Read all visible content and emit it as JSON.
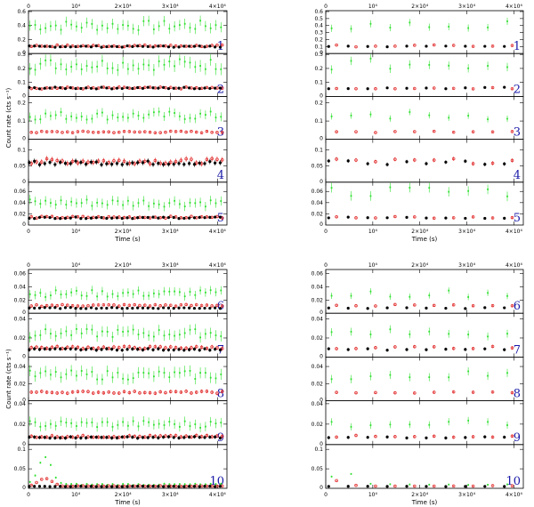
{
  "chart_data": [
    {
      "type": "scatter",
      "xlabel": "Time (s)",
      "ylabel": "Count rate (cts s⁻¹)",
      "xlim": [
        0,
        42000
      ],
      "x_tick_labels": [
        "0",
        "10⁴",
        "2×10⁴",
        "3×10⁴",
        "4×10⁴"
      ],
      "panels": [
        {
          "label": "1",
          "ylim": [
            0,
            0.6
          ],
          "yticks": [
            "0.2",
            "0.4",
            "0.6"
          ],
          "green": 0.4,
          "red": 0.11,
          "black": 0.1
        },
        {
          "label": "2",
          "ylim": [
            0,
            0.3
          ],
          "yticks": [
            "0.1",
            "0.2",
            "0.3"
          ],
          "green": 0.23,
          "red": 0.06,
          "black": 0.06
        },
        {
          "label": "3",
          "ylim": [
            0,
            0.23
          ],
          "yticks": [
            "0.1",
            "0.2"
          ],
          "green": 0.13,
          "red": 0.04,
          "black": null
        },
        {
          "label": "4",
          "ylim": [
            0,
            0.13
          ],
          "yticks": [
            "0.05",
            "0.1"
          ],
          "green": null,
          "red": 0.065,
          "black": 0.06
        },
        {
          "label": "5",
          "ylim": [
            0,
            0.075
          ],
          "yticks": [
            "0.02",
            "0.04",
            "0.06"
          ],
          "green": 0.04,
          "red": 0.014,
          "black": 0.013
        }
      ]
    },
    {
      "type": "scatter",
      "xlabel": "Time (s)",
      "ylabel": "",
      "xlim": [
        0,
        42000
      ],
      "x_tick_labels": [
        "0",
        "10⁴",
        "2×10⁴",
        "3×10⁴",
        "4×10⁴"
      ],
      "panels": [
        {
          "label": "1",
          "ylim": [
            0,
            0.6
          ],
          "yticks": [
            "0.1",
            "0.2",
            "0.3",
            "0.4",
            "0.5",
            "0.6"
          ],
          "green": 0.4,
          "red": 0.11,
          "black": 0.1
        },
        {
          "label": "2",
          "ylim": [
            0,
            0.3
          ],
          "yticks": [
            "0.1",
            "0.2",
            "0.3"
          ],
          "green": 0.23,
          "red": 0.06,
          "black": 0.06
        },
        {
          "label": "3",
          "ylim": [
            0,
            0.23
          ],
          "yticks": [
            "0.1",
            "0.2"
          ],
          "green": 0.13,
          "red": 0.04,
          "black": null
        },
        {
          "label": "4",
          "ylim": [
            0,
            0.13
          ],
          "yticks": [
            "0.05",
            "0.1"
          ],
          "green": null,
          "red": 0.065,
          "black": 0.06
        },
        {
          "label": "5",
          "ylim": [
            0,
            0.075
          ],
          "yticks": [
            "0.02",
            "0.04",
            "0.06"
          ],
          "green": 0.06,
          "red": 0.014,
          "black": 0.013
        }
      ]
    },
    {
      "type": "scatter",
      "xlabel": "Time (s)",
      "ylabel": "Count rate (cts s⁻¹)",
      "xlim": [
        0,
        42000
      ],
      "x_tick_labels": [
        "0",
        "10⁴",
        "2×10⁴",
        "3×10⁴",
        "4×10⁴"
      ],
      "panels": [
        {
          "label": "6",
          "ylim": [
            0,
            0.065
          ],
          "yticks": [
            "0.02",
            "0.04",
            "0.06"
          ],
          "green": 0.03,
          "red": 0.012,
          "black": 0.008
        },
        {
          "label": "7",
          "ylim": [
            0,
            0.045
          ],
          "yticks": [
            "0.02",
            "0.04"
          ],
          "green": 0.025,
          "red": 0.01,
          "black": 0.008
        },
        {
          "label": "8",
          "ylim": [
            0,
            0.05
          ],
          "yticks": [
            "0.02",
            "0.04"
          ],
          "green": 0.03,
          "red": 0.01,
          "black": null
        },
        {
          "label": "9",
          "ylim": [
            0,
            0.042
          ],
          "yticks": [
            "0.02",
            "0.04"
          ],
          "green": 0.02,
          "red": 0.008,
          "black": 0.007
        },
        {
          "label": "10",
          "ylim": [
            0,
            0.11
          ],
          "yticks": [
            "0.05",
            "0.1"
          ],
          "green": 0.01,
          "red": 0.006,
          "black": 0.005,
          "flare": true
        }
      ]
    },
    {
      "type": "scatter",
      "xlabel": "Time (s)",
      "ylabel": "",
      "xlim": [
        0,
        42000
      ],
      "x_tick_labels": [
        "0",
        "10⁴",
        "2×10⁴",
        "3×10⁴",
        "4×10⁴"
      ],
      "panels": [
        {
          "label": "6",
          "ylim": [
            0,
            0.065
          ],
          "yticks": [
            "0.02",
            "0.04",
            "0.06"
          ],
          "green": 0.03,
          "red": 0.012,
          "black": 0.008
        },
        {
          "label": "7",
          "ylim": [
            0,
            0.045
          ],
          "yticks": [
            "0.02",
            "0.04"
          ],
          "green": 0.025,
          "red": 0.01,
          "black": 0.008
        },
        {
          "label": "8",
          "ylim": [
            0,
            0.05
          ],
          "yticks": [
            "0.02",
            "0.04"
          ],
          "green": 0.03,
          "red": 0.01,
          "black": null
        },
        {
          "label": "9",
          "ylim": [
            0,
            0.042
          ],
          "yticks": [
            "0.02",
            "0.04"
          ],
          "green": 0.02,
          "red": 0.008,
          "black": 0.007
        },
        {
          "label": "10",
          "ylim": [
            0,
            0.11
          ],
          "yticks": [
            "0.05",
            "0.1"
          ],
          "green": 0.01,
          "red": 0.006,
          "black": 0.005,
          "flare": true
        }
      ]
    }
  ],
  "colors": {
    "series_green": "#2fe02f",
    "series_red": "#e02020",
    "series_black": "#000000",
    "panel_label": "#1a1aa8",
    "axes": "#000000"
  }
}
